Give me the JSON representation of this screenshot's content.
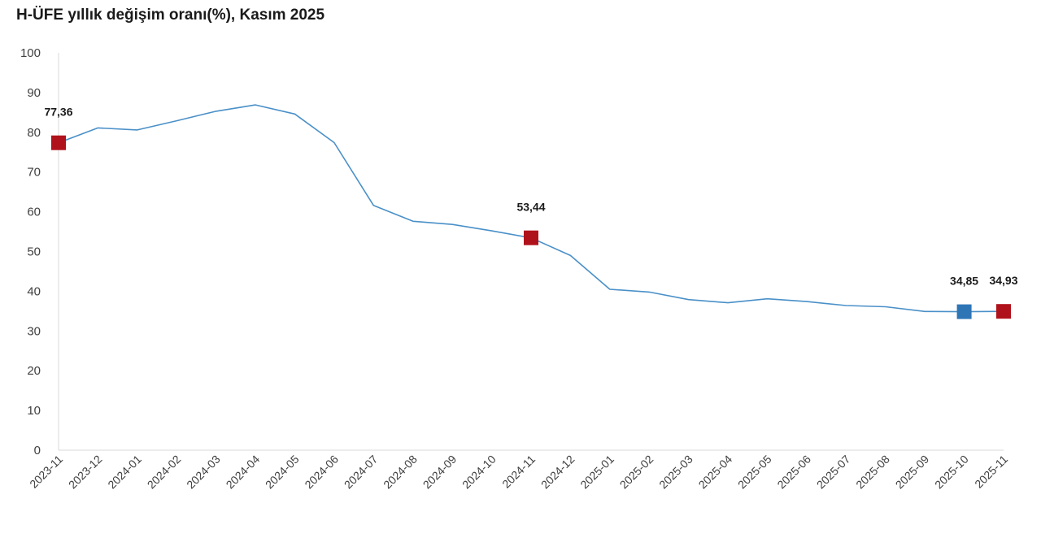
{
  "chart_data": {
    "type": "line",
    "title": "H-ÜFE yıllık değişim oranı(%), Kasım 2025",
    "xlabel": "",
    "ylabel": "",
    "ylim": [
      0,
      100
    ],
    "yticks": [
      0,
      10,
      20,
      30,
      40,
      50,
      60,
      70,
      80,
      90,
      100
    ],
    "grid": false,
    "categories": [
      "2023-11",
      "2023-12",
      "2024-01",
      "2024-02",
      "2024-03",
      "2024-04",
      "2024-05",
      "2024-06",
      "2024-07",
      "2024-08",
      "2024-09",
      "2024-10",
      "2024-11",
      "2024-12",
      "2025-01",
      "2025-02",
      "2025-03",
      "2025-04",
      "2025-05",
      "2025-06",
      "2025-07",
      "2025-08",
      "2025-09",
      "2025-10",
      "2025-11"
    ],
    "series": [
      {
        "values": [
          77.36,
          81.1,
          80.6,
          82.9,
          85.3,
          86.9,
          84.6,
          77.4,
          61.6,
          57.6,
          56.8,
          55.2,
          53.44,
          49.0,
          40.5,
          39.8,
          37.9,
          37.1,
          38.1,
          37.4,
          36.4,
          36.1,
          34.9,
          34.85,
          34.93
        ],
        "color": "#4a90c8"
      }
    ],
    "markers": [
      {
        "category": "2023-11",
        "value": 77.36,
        "label": "77,36",
        "color": "#b0121b"
      },
      {
        "category": "2024-11",
        "value": 53.44,
        "label": "53,44",
        "color": "#b0121b"
      },
      {
        "category": "2025-10",
        "value": 34.85,
        "label": "34,85",
        "color": "#2e75b6"
      },
      {
        "category": "2025-11",
        "value": 34.93,
        "label": "34,93",
        "color": "#b0121b"
      }
    ],
    "axis_color": "#d9d9d9"
  }
}
